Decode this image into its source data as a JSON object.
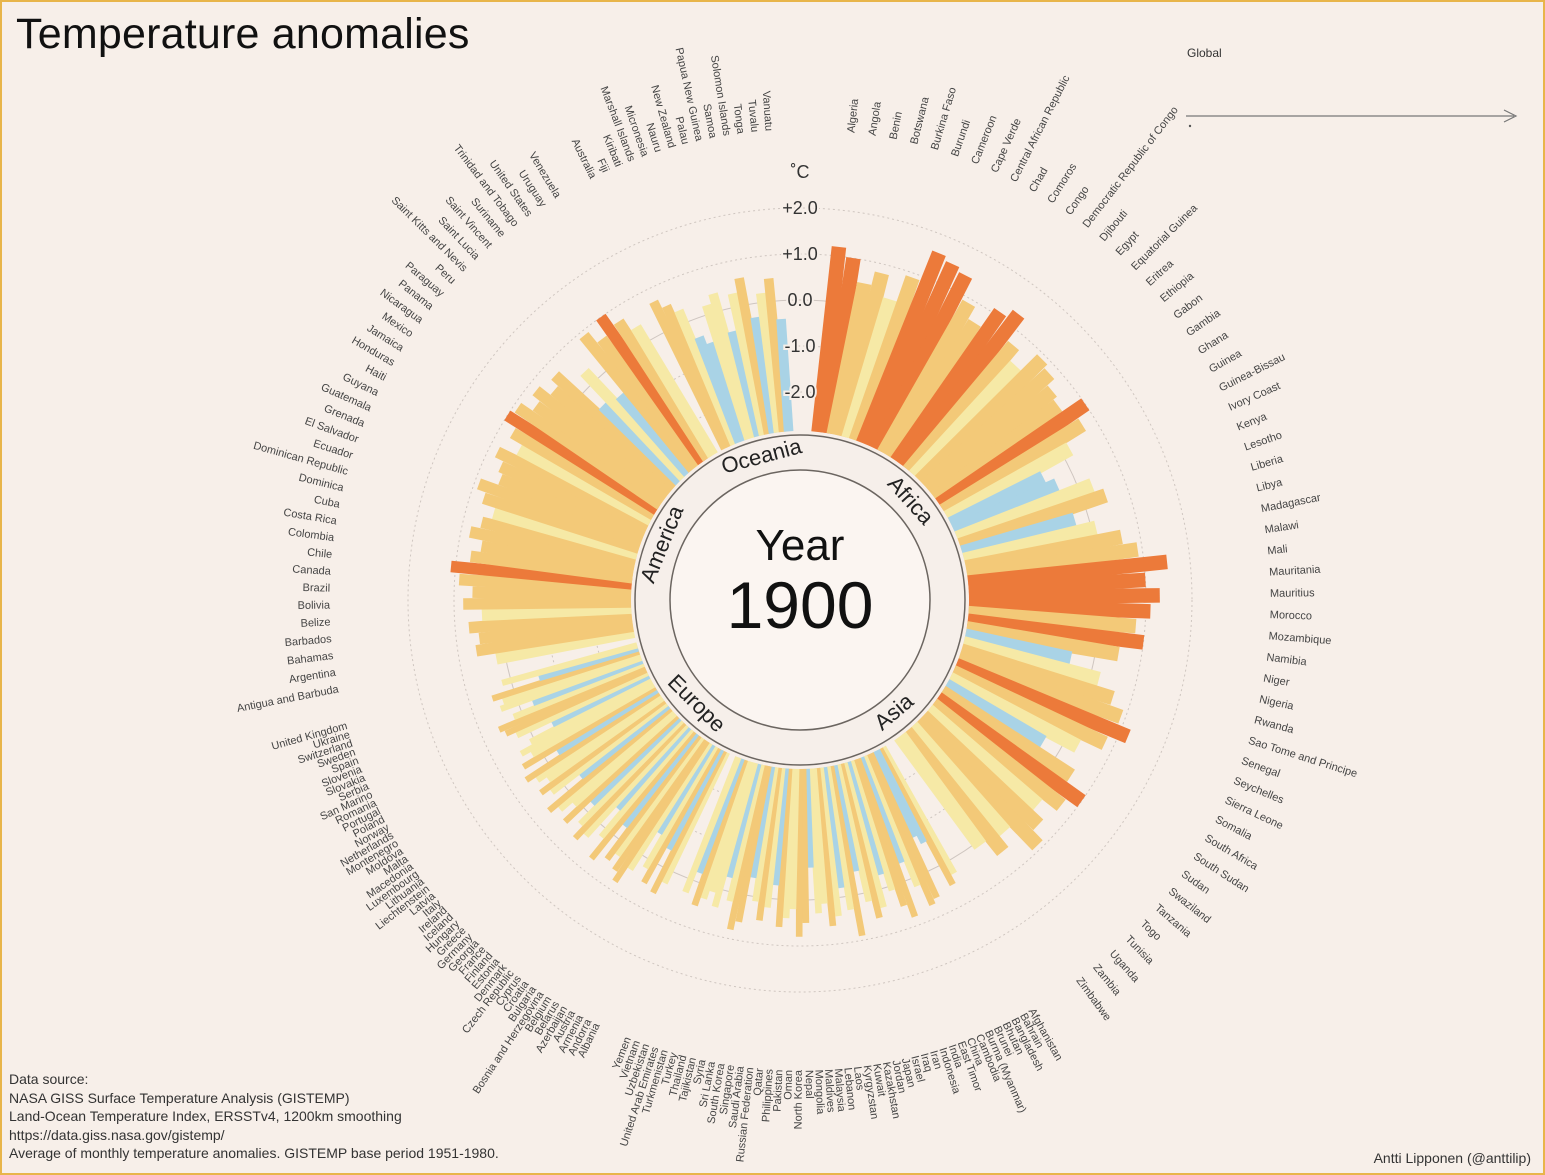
{
  "title": "Temperature anomalies",
  "global_label": "Global",
  "year_label": "Year",
  "year_value": "1900",
  "unit_label": "˚C",
  "source_lines": [
    "Data source:",
    "NASA GISS Surface Temperature Analysis (GISTEMP)",
    "Land-Ocean Temperature Index, ERSSTv4, 1200km smoothing",
    "https://data.giss.nasa.gov/gistemp/",
    "Average of monthly temperature anomalies. GISTEMP base period 1951-1980."
  ],
  "credit": "Antti Lipponen (@anttilip)",
  "colors": {
    "background": "#f7efe9",
    "cold": "#a9d3e6",
    "neutral": "#f6e9a6",
    "warm": "#f3c978",
    "hot": "#ec7a3a",
    "grid": "#cfc6c0"
  },
  "chart_data": {
    "type": "bar",
    "layout": "radial",
    "title": "Temperature anomalies",
    "year": 1900,
    "unit": "˚C",
    "scale_ticks": [
      "+2.0",
      "+1.0",
      "0.0",
      "-1.0",
      "-2.0"
    ],
    "scale_values": [
      2.0,
      1.0,
      0.0,
      -1.0,
      -2.0
    ],
    "ylim": [
      -2.5,
      2.5
    ],
    "regions": [
      {
        "name": "Africa",
        "countries": [
          "Algeria",
          "Angola",
          "Benin",
          "Botswana",
          "Burkina Faso",
          "Burundi",
          "Cameroon",
          "Cape Verde",
          "Central African Republic",
          "Chad",
          "Comoros",
          "Congo",
          "Democratic Republic of Congo",
          "Djibouti",
          "Egypt",
          "Equatorial Guinea",
          "Eritrea",
          "Ethiopia",
          "Gabon",
          "Gambia",
          "Ghana",
          "Guinea",
          "Guinea-Bissau",
          "Ivory Coast",
          "Kenya",
          "Lesotho",
          "Liberia",
          "Libya",
          "Madagascar",
          "Malawi",
          "Mali",
          "Mauritania",
          "Mauritius",
          "Morocco",
          "Mozambique",
          "Namibia",
          "Niger",
          "Nigeria",
          "Rwanda",
          "Sao Tome and Principe",
          "Senegal",
          "Seychelles",
          "Sierra Leone",
          "Somalia",
          "South Africa",
          "South Sudan",
          "Sudan",
          "Swaziland",
          "Tanzania",
          "Togo",
          "Tunisia",
          "Uganda",
          "Zambia",
          "Zimbabwe"
        ],
        "values": [
          1.2,
          1.0,
          0.5,
          0.8,
          0.3,
          0.9,
          1.6,
          1.5,
          1.4,
          0.9,
          0.6,
          1.1,
          1.3,
          0.7,
          0.4,
          0.9,
          0.8,
          0.6,
          0.5,
          1.0,
          0.7,
          0.2,
          -0.6,
          -0.4,
          0.3,
          0.5,
          -0.3,
          0.1,
          0.6,
          0.9,
          1.5,
          1.0,
          1.3,
          1.1,
          0.8,
          1.0,
          0.5,
          -0.5,
          0.2,
          0.6,
          0.9,
          1.2,
          0.8,
          0.3,
          -0.4,
          0.5,
          1.0,
          0.7,
          0.3,
          0.6,
          0.9,
          0.2,
          0.5,
          0.1
        ]
      },
      {
        "name": "Asia",
        "countries": [
          "Afghanistan",
          "Bahrain",
          "Bangladesh",
          "Bhutan",
          "Brunei",
          "Burma (Myanmar)",
          "Cambodia",
          "China",
          "East Timor",
          "India",
          "Indonesia",
          "Iran",
          "Iraq",
          "Israel",
          "Japan",
          "Jordan",
          "Kazakhstan",
          "Kuwait",
          "Kyrgyzstan",
          "Laos",
          "Lebanon",
          "Malaysia",
          "Maldives",
          "Mongolia",
          "Nepal",
          "North Korea",
          "Oman",
          "Pakistan",
          "Philippines",
          "Qatar",
          "Russian Federation",
          "Saudi Arabia",
          "Singapore",
          "South Korea",
          "Sri Lanka",
          "Syria",
          "Tajikistan",
          "Thailand",
          "Turkey",
          "Turkmenistan",
          "United Arab Emirates",
          "Uzbekistan",
          "Vietnam",
          "Yemen"
        ],
        "values": [
          0.3,
          0.5,
          -0.6,
          -0.8,
          0.6,
          0.7,
          0.2,
          -0.4,
          0.8,
          0.5,
          0.1,
          -0.3,
          0.4,
          0.6,
          0.2,
          -0.5,
          0.9,
          0.3,
          -0.2,
          0.4,
          0.6,
          0.1,
          0.3,
          -0.7,
          0.5,
          0.8,
          0.2,
          0.4,
          0.6,
          -0.3,
          0.2,
          0.5,
          0.1,
          -0.4,
          0.6,
          0.8,
          0.2,
          -0.3,
          0.4,
          0.1,
          0.3,
          0.5,
          -0.2,
          0.3
        ]
      },
      {
        "name": "Europe",
        "countries": [
          "Albania",
          "Andorra",
          "Armenia",
          "Austria",
          "Azerbaijan",
          "Belarus",
          "Belgium",
          "Bosnia and Herzegovina",
          "Bulgaria",
          "Croatia",
          "Cyprus",
          "Czech Republic",
          "Denmark",
          "Estonia",
          "Finland",
          "France",
          "Georgia",
          "Germany",
          "Greece",
          "Hungary",
          "Iceland",
          "Ireland",
          "Italy",
          "Latvia",
          "Liechtenstein",
          "Lithuania",
          "Luxembourg",
          "Macedonia",
          "Malta",
          "Moldova",
          "Montenegro",
          "Netherlands",
          "Norway",
          "Poland",
          "Portugal",
          "Romania",
          "San Marino",
          "Serbia",
          "Slovakia",
          "Slovenia",
          "Spain",
          "Sweden",
          "Switzerland",
          "Ukraine",
          "United Kingdom"
        ],
        "values": [
          0.3,
          0.6,
          -0.4,
          0.5,
          0.2,
          -0.6,
          0.4,
          0.8,
          0.6,
          0.3,
          0.5,
          -0.3,
          0.7,
          0.2,
          -0.5,
          0.4,
          0.6,
          0.3,
          -0.2,
          0.5,
          0.1,
          0.4,
          0.6,
          -0.4,
          0.3,
          0.5,
          0.2,
          0.4,
          0.6,
          -0.3,
          0.5,
          0.2,
          0.4,
          0.1,
          -0.5,
          0.3,
          0.5,
          0.6,
          0.2,
          -0.3,
          0.4,
          0.3,
          0.5,
          -0.6,
          0.2
        ]
      },
      {
        "name": "America",
        "countries": [
          "Antigua and Barbuda",
          "Argentina",
          "Bahamas",
          "Barbados",
          "Belize",
          "Bolivia",
          "Brazil",
          "Canada",
          "Chile",
          "Colombia",
          "Costa Rica",
          "Cuba",
          "Dominica",
          "Dominican Republic",
          "Ecuador",
          "El Salvador",
          "Grenada",
          "Guatemala",
          "Guyana",
          "Haiti",
          "Honduras",
          "Jamaica",
          "Mexico",
          "Nicaragua",
          "Panama",
          "Paraguay",
          "Peru",
          "Saint Kitts and Nevis",
          "Saint Lucia",
          "Saint Vincent",
          "Suriname",
          "Trinidad and Tobago",
          "United States",
          "Uruguay",
          "Venezuela"
        ],
        "values": [
          0.2,
          0.6,
          0.5,
          0.7,
          0.4,
          0.8,
          0.6,
          0.9,
          1.1,
          0.7,
          0.5,
          0.8,
          0.6,
          0.4,
          0.7,
          0.9,
          0.5,
          0.6,
          0.8,
          0.4,
          0.7,
          1.0,
          0.9,
          0.6,
          0.8,
          0.5,
          0.7,
          -0.5,
          0.3,
          -0.6,
          0.9,
          0.6,
          1.0,
          0.7,
          0.4
        ]
      },
      {
        "name": "Oceania",
        "countries": [
          "Australia",
          "Fiji",
          "Kiribati",
          "Marshall Islands",
          "Micronesia",
          "Nauru",
          "New Zealand",
          "Palau",
          "Papua New Guinea",
          "Samoa",
          "Solomon Islands",
          "Tonga",
          "Tuvalu",
          "Vanuatu"
        ],
        "values": [
          0.7,
          0.5,
          0.3,
          -0.4,
          -0.6,
          0.2,
          0.4,
          -0.5,
          0.3,
          0.6,
          -0.3,
          0.2,
          0.5,
          -0.4
        ]
      }
    ]
  }
}
